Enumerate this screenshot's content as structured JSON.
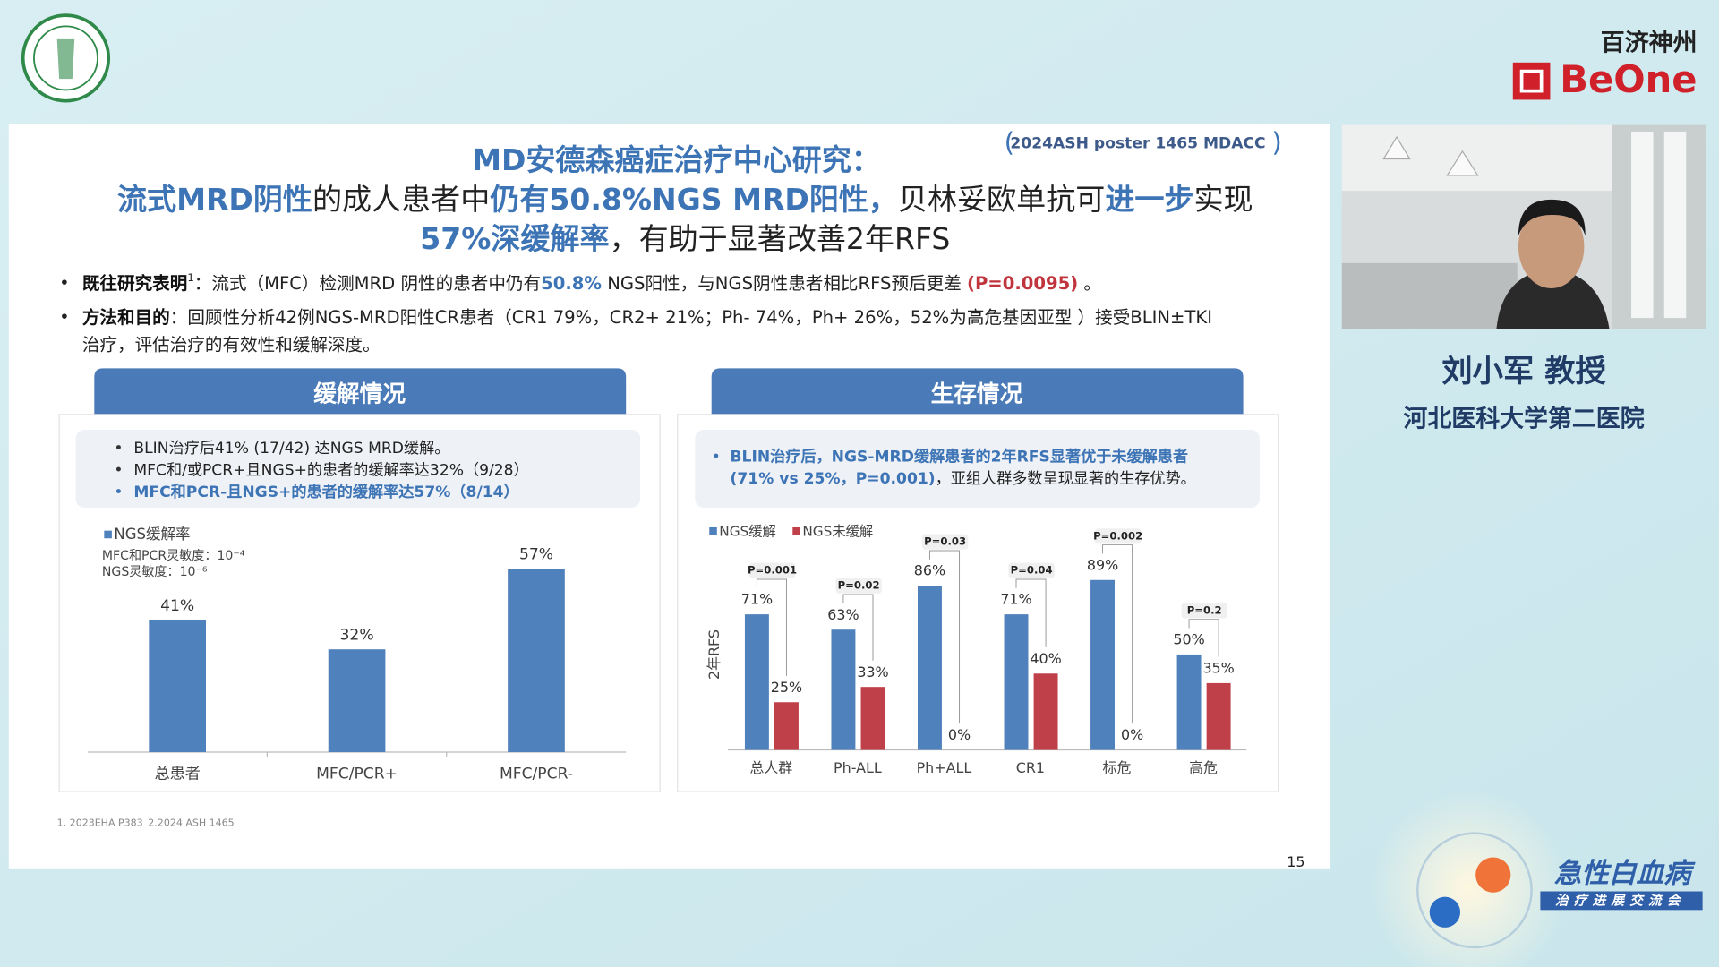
{
  "brand": {
    "cn": "百济神州",
    "en": "BeOne"
  },
  "slide": {
    "tag": "2024ASH poster 1465 MDACC",
    "title": [
      [
        {
          "text": "MD安德森癌症治疗中心研究：",
          "style": "blue"
        }
      ],
      [
        {
          "text": "流式MRD阴性",
          "style": "blue"
        },
        {
          "text": "的成人患者中",
          "style": "dark"
        },
        {
          "text": "仍有50.8%NGS MRD阳性，",
          "style": "blue"
        },
        {
          "text": "贝林妥欧单抗可",
          "style": "dark"
        },
        {
          "text": "进一步",
          "style": "blue"
        },
        {
          "text": "实现",
          "style": "dark"
        }
      ],
      [
        {
          "text": "57%深缓解率",
          "style": "blue"
        },
        {
          "text": "，有助于显著改善2年RFS",
          "style": "dark"
        }
      ]
    ],
    "bullets": [
      [
        [
          {
            "text": "既往研究表明",
            "style": "bold"
          },
          {
            "text": "1",
            "style": "sup"
          },
          {
            "text": "：流式（MFC）检测MRD 阴性的患者中仍有",
            "style": "dark"
          },
          {
            "text": "50.8%",
            "style": "blue"
          },
          {
            "text": " NGS阳性，与NGS阴性患者相比RFS预后更差 ",
            "style": "dark"
          },
          {
            "text": "(P=0.0095)",
            "style": "red"
          },
          {
            "text": " 。",
            "style": "dark"
          }
        ]
      ],
      [
        [
          {
            "text": "方法和目的",
            "style": "bold"
          },
          {
            "text": "：回顾性分析42例NGS-MRD阳性CR患者（CR1 79%，CR2+ 21%；Ph- 74%，Ph+ 26%，52%为高危基因亚型 ）接受BLIN±TKI",
            "style": "dark"
          }
        ],
        [
          {
            "text": "治疗，评估治疗的有效性和缓解深度。",
            "style": "dark"
          }
        ]
      ]
    ],
    "left_panel": {
      "title": "缓解情况",
      "notes": [
        [
          [
            {
              "text": "BLIN治疗后41% (17/42) 达NGS MRD缓解。",
              "style": "dark"
            }
          ]
        ],
        [
          [
            {
              "text": "MFC和/或PCR+且NGS+的患者的缓解率达32%（9/28）",
              "style": "dark"
            }
          ]
        ],
        [
          [
            {
              "text": "MFC和PCR-且NGS+的患者的缓解率达57%（8/14）",
              "style": "blue"
            }
          ]
        ]
      ]
    },
    "right_panel": {
      "title": "生存情况",
      "notes": [
        [
          [
            {
              "text": "BLIN治疗后，NGS-MRD缓解患者的2年RFS显著优于未缓解患者",
              "style": "blue"
            }
          ],
          [
            {
              "text": "(71% vs 25%，P=0.001)",
              "style": "blue"
            },
            {
              "text": "，亚组人群多数呈现显著的生存优势。",
              "style": "dark"
            }
          ]
        ]
      ]
    },
    "footnotes": [
      "1. 2023EHA P383",
      "2.2024 ASH 1465"
    ],
    "page_number": "15"
  },
  "speaker": {
    "name": "刘小军  教授",
    "affiliation": "河北医科大学第二医院"
  },
  "event": {
    "title": "急性白血病",
    "subtitle": "治疗进展交流会"
  },
  "chart_data": [
    {
      "type": "bar",
      "categories": [
        "总患者",
        "MFC/PCR+",
        "MFC/PCR-"
      ],
      "series": [
        {
          "name": "NGS缓解率",
          "color": "#4f81bd",
          "values": [
            41,
            32,
            57
          ],
          "value_labels": [
            "41%",
            "32%",
            "57%"
          ]
        }
      ],
      "notes": [
        "MFC和PCR灵敏度：10⁻⁴",
        "NGS灵敏度：10⁻⁶"
      ]
    },
    {
      "type": "bar",
      "y_label": "2年RFS",
      "categories": [
        "总人群",
        "Ph-ALL",
        "Ph+ALL",
        "CR1",
        "标危",
        "高危"
      ],
      "series": [
        {
          "name": "NGS缓解",
          "color": "#4f81bd",
          "values": [
            71,
            63,
            86,
            71,
            89,
            50
          ],
          "value_labels": [
            "71%",
            "63%",
            "86%",
            "71%",
            "89%",
            "50%"
          ]
        },
        {
          "name": "NGS未缓解",
          "color": "#c0404a",
          "values": [
            25,
            33,
            0,
            40,
            0,
            35
          ],
          "value_labels": [
            "25%",
            "33%",
            "0%",
            "40%",
            "0%",
            "35%"
          ]
        }
      ],
      "annotations": [
        "P=0.001",
        "P=0.02",
        "P=0.03",
        "P=0.04",
        "P=0.002",
        "P=0.2"
      ]
    }
  ]
}
